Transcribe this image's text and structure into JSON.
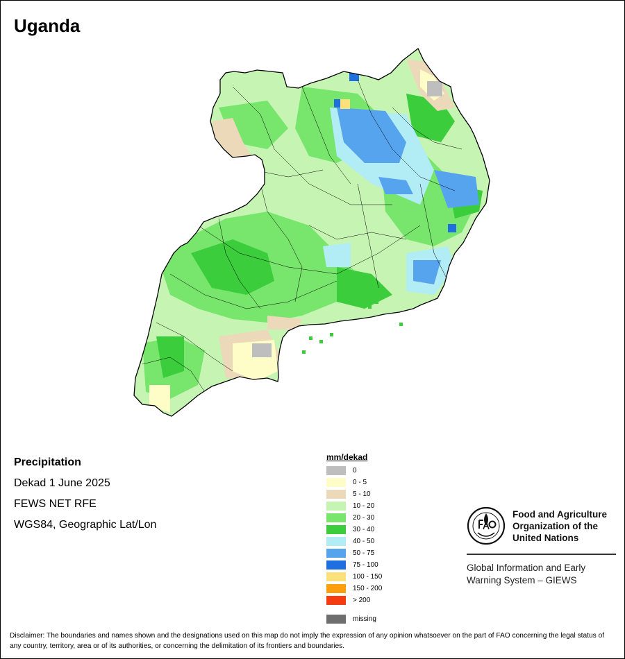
{
  "map": {
    "title": "Uganda"
  },
  "info": {
    "variable": "Precipitation",
    "period": "Dekad 1 June 2025",
    "source": "FEWS NET RFE",
    "projection": "WGS84, Geographic Lat/Lon"
  },
  "legend": {
    "title": "mm/dekad",
    "items": [
      {
        "label": "0",
        "color": "#bebebe"
      },
      {
        "label": "0 - 5",
        "color": "#fefdc8"
      },
      {
        "label": "5 - 10",
        "color": "#ecd9b9"
      },
      {
        "label": "10 - 20",
        "color": "#c6f5b3"
      },
      {
        "label": "20 - 30",
        "color": "#78e66c"
      },
      {
        "label": "30 - 40",
        "color": "#3bcd3b"
      },
      {
        "label": "40 - 50",
        "color": "#b2ecf5"
      },
      {
        "label": "50 - 75",
        "color": "#57a4ee"
      },
      {
        "label": "75 - 100",
        "color": "#1f6fe0"
      },
      {
        "label": "100 - 150",
        "color": "#fce07c"
      },
      {
        "label": "150 - 200",
        "color": "#fb9f0e"
      },
      {
        "label": "> 200",
        "color": "#f53b10"
      }
    ],
    "missing": {
      "label": "missing",
      "color": "#6e6e6e"
    }
  },
  "fao": {
    "org_line1": "Food and Agriculture",
    "org_line2": "Organization of the",
    "org_line3": "United Nations",
    "giews_line1": "Global Information and Early",
    "giews_line2": "Warning System – GIEWS"
  },
  "disclaimer": {
    "text": "Disclaimer: The boundaries and names shown and the designations used on this map do not imply the expression of any opinion whatsoever on the part of FAO concerning the legal status of any country, territory, area or of its authorities, or concerning the delimitation of its frontiers and boundaries."
  }
}
